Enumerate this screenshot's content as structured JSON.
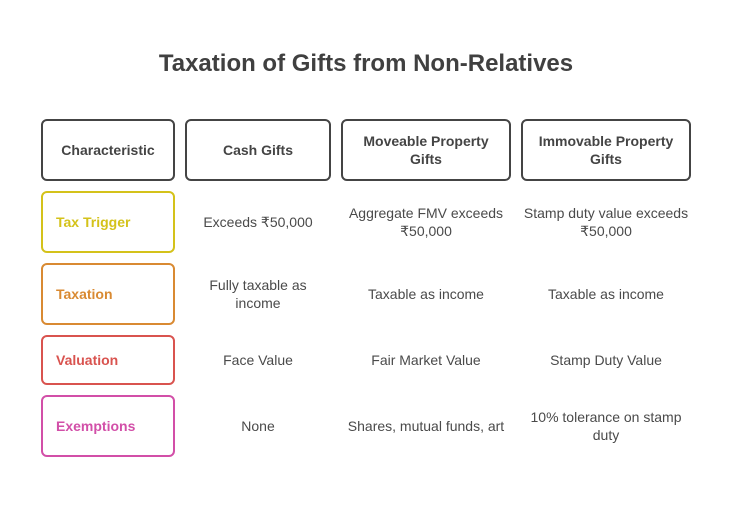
{
  "title": "Taxation of Gifts from Non-Relatives",
  "headers": [
    "Characteristic",
    "Cash Gifts",
    "Moveable Property Gifts",
    "Immovable Property Gifts"
  ],
  "rows": [
    {
      "label": "Tax Trigger",
      "color": "#d4c21a",
      "cells": [
        "Exceeds ₹50,000",
        "Aggregate FMV exceeds ₹50,000",
        "Stamp duty value exceeds ₹50,000"
      ]
    },
    {
      "label": "Taxation",
      "color": "#d98a32",
      "cells": [
        "Fully taxable as income",
        "Taxable as income",
        "Taxable as income"
      ]
    },
    {
      "label": "Valuation",
      "color": "#d9534f",
      "cells": [
        "Face Value",
        "Fair Market Value",
        "Stamp Duty Value"
      ]
    },
    {
      "label": "Exemptions",
      "color": "#d24fa8",
      "cells": [
        "None",
        "Shares, mutual funds, art",
        "10% tolerance on stamp duty"
      ]
    }
  ]
}
